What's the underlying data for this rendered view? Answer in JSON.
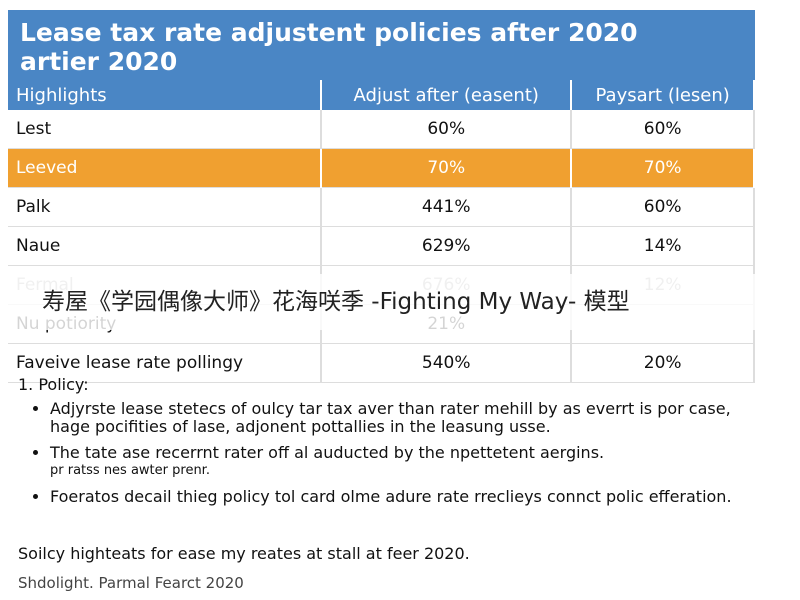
{
  "header": {
    "title": "Lease tax rate adjustent policies after 2020",
    "subtitle": "artier 2020"
  },
  "table": {
    "columns": [
      "Highlights",
      "Adjust after (easent)",
      "Paysart (lesen)"
    ],
    "rows": [
      [
        "Lest",
        "60%",
        "60%"
      ],
      [
        "Leeved",
        "70%",
        "70%"
      ],
      [
        "Palk",
        "441%",
        "60%"
      ],
      [
        "Naue",
        "629%",
        "14%"
      ],
      [
        "Fermal",
        "676%",
        "12%"
      ],
      [
        "Nu potiority",
        "21%",
        null
      ],
      [
        "Faveive lease rate pollingy",
        "540%",
        "20%"
      ]
    ]
  },
  "watermark": "寿屋《学园偶像大师》花海咲季 -Fighting My Way- 模型",
  "policy": {
    "heading": "1.  Policy:",
    "items": [
      "Adjyrste lease stetecs of oulcy tar tax aver than rater mehill by as everrt is por case, hage pocifities of lase, adjonent pottallies in the leasung usse.",
      "The tate ase recerrnt rater off al auducted by the npettetent aergins.",
      "pr ratss nes awter prenr.",
      "Foeratos decail thieg policy tol card olme adure rate rreclieys connct polic efferation."
    ]
  },
  "footer": {
    "summary": "Soilcy highteats for ease my reates at stall at feer 2020.",
    "credit": "Shdolight. Parmal Fearct 2020"
  }
}
